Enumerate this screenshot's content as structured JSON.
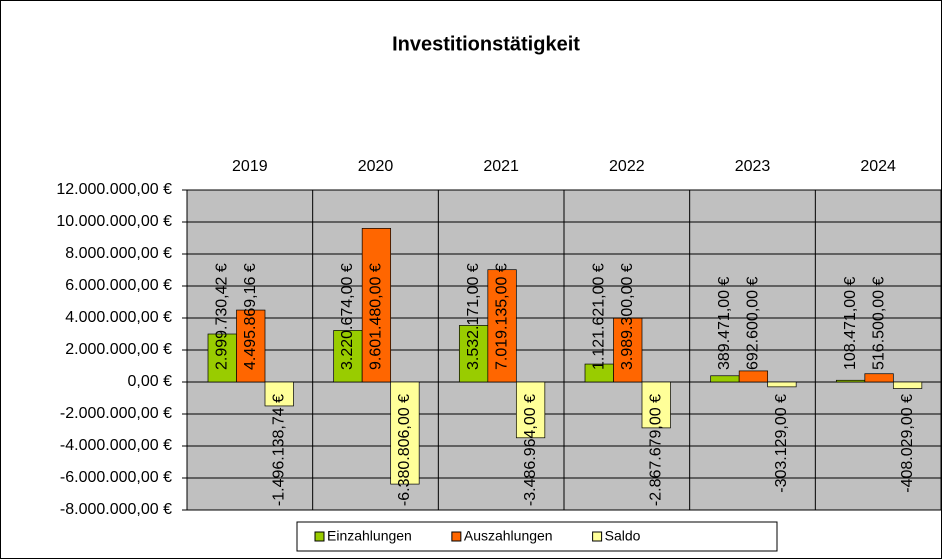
{
  "chart_data": {
    "type": "bar",
    "title": "Investitionstätigkeit",
    "categories": [
      "2019",
      "2020",
      "2021",
      "2022",
      "2023",
      "2024"
    ],
    "series": [
      {
        "name": "Einzahlungen",
        "color": "#99cc00",
        "values": [
          2999730.42,
          3220674,
          3532171,
          1121621,
          389471,
          108471
        ],
        "value_labels": [
          "2.999.730,42 €",
          "3.220.674,00 €",
          "3.532.171,00 €",
          "1.121.621,00 €",
          "389.471,00 €",
          "108.471,00 €"
        ]
      },
      {
        "name": "Auszahlungen",
        "color": "#ff6600",
        "values": [
          4495869.16,
          9601480,
          7019135,
          3989300,
          692600,
          516500
        ],
        "value_labels": [
          "4.495.869,16 €",
          "9.601.480,00 €",
          "7.019.135,00 €",
          "3.989.300,00 €",
          "692.600,00 €",
          "516.500,00 €"
        ]
      },
      {
        "name": "Saldo",
        "color": "#ffff99",
        "values": [
          -1496138.74,
          -6380806,
          -3486964,
          -2867679,
          -303129,
          -408029
        ],
        "value_labels": [
          "-1.496.138,74 €",
          "-6.380.806,00 €",
          "-3.486.964,00 €",
          "-2.867.679,00 €",
          "-303.129,00 €",
          "-408.029,00 €"
        ]
      }
    ],
    "ylim": [
      -8000000,
      12000000
    ],
    "yticks": [
      {
        "value": 12000000,
        "label": "12.000.000,00 €"
      },
      {
        "value": 10000000,
        "label": "10.000.000,00 €"
      },
      {
        "value": 8000000,
        "label": "8.000.000,00 €"
      },
      {
        "value": 6000000,
        "label": "6.000.000,00 €"
      },
      {
        "value": 4000000,
        "label": "4.000.000,00 €"
      },
      {
        "value": 2000000,
        "label": "2.000.000,00 €"
      },
      {
        "value": 0,
        "label": "0,00 €"
      },
      {
        "value": -2000000,
        "label": "-2.000.000,00 €"
      },
      {
        "value": -4000000,
        "label": "-4.000.000,00 €"
      },
      {
        "value": -6000000,
        "label": "-6.000.000,00 €"
      },
      {
        "value": -8000000,
        "label": "-8.000.000,00 €"
      }
    ],
    "grid": true,
    "legend": "bottom"
  }
}
